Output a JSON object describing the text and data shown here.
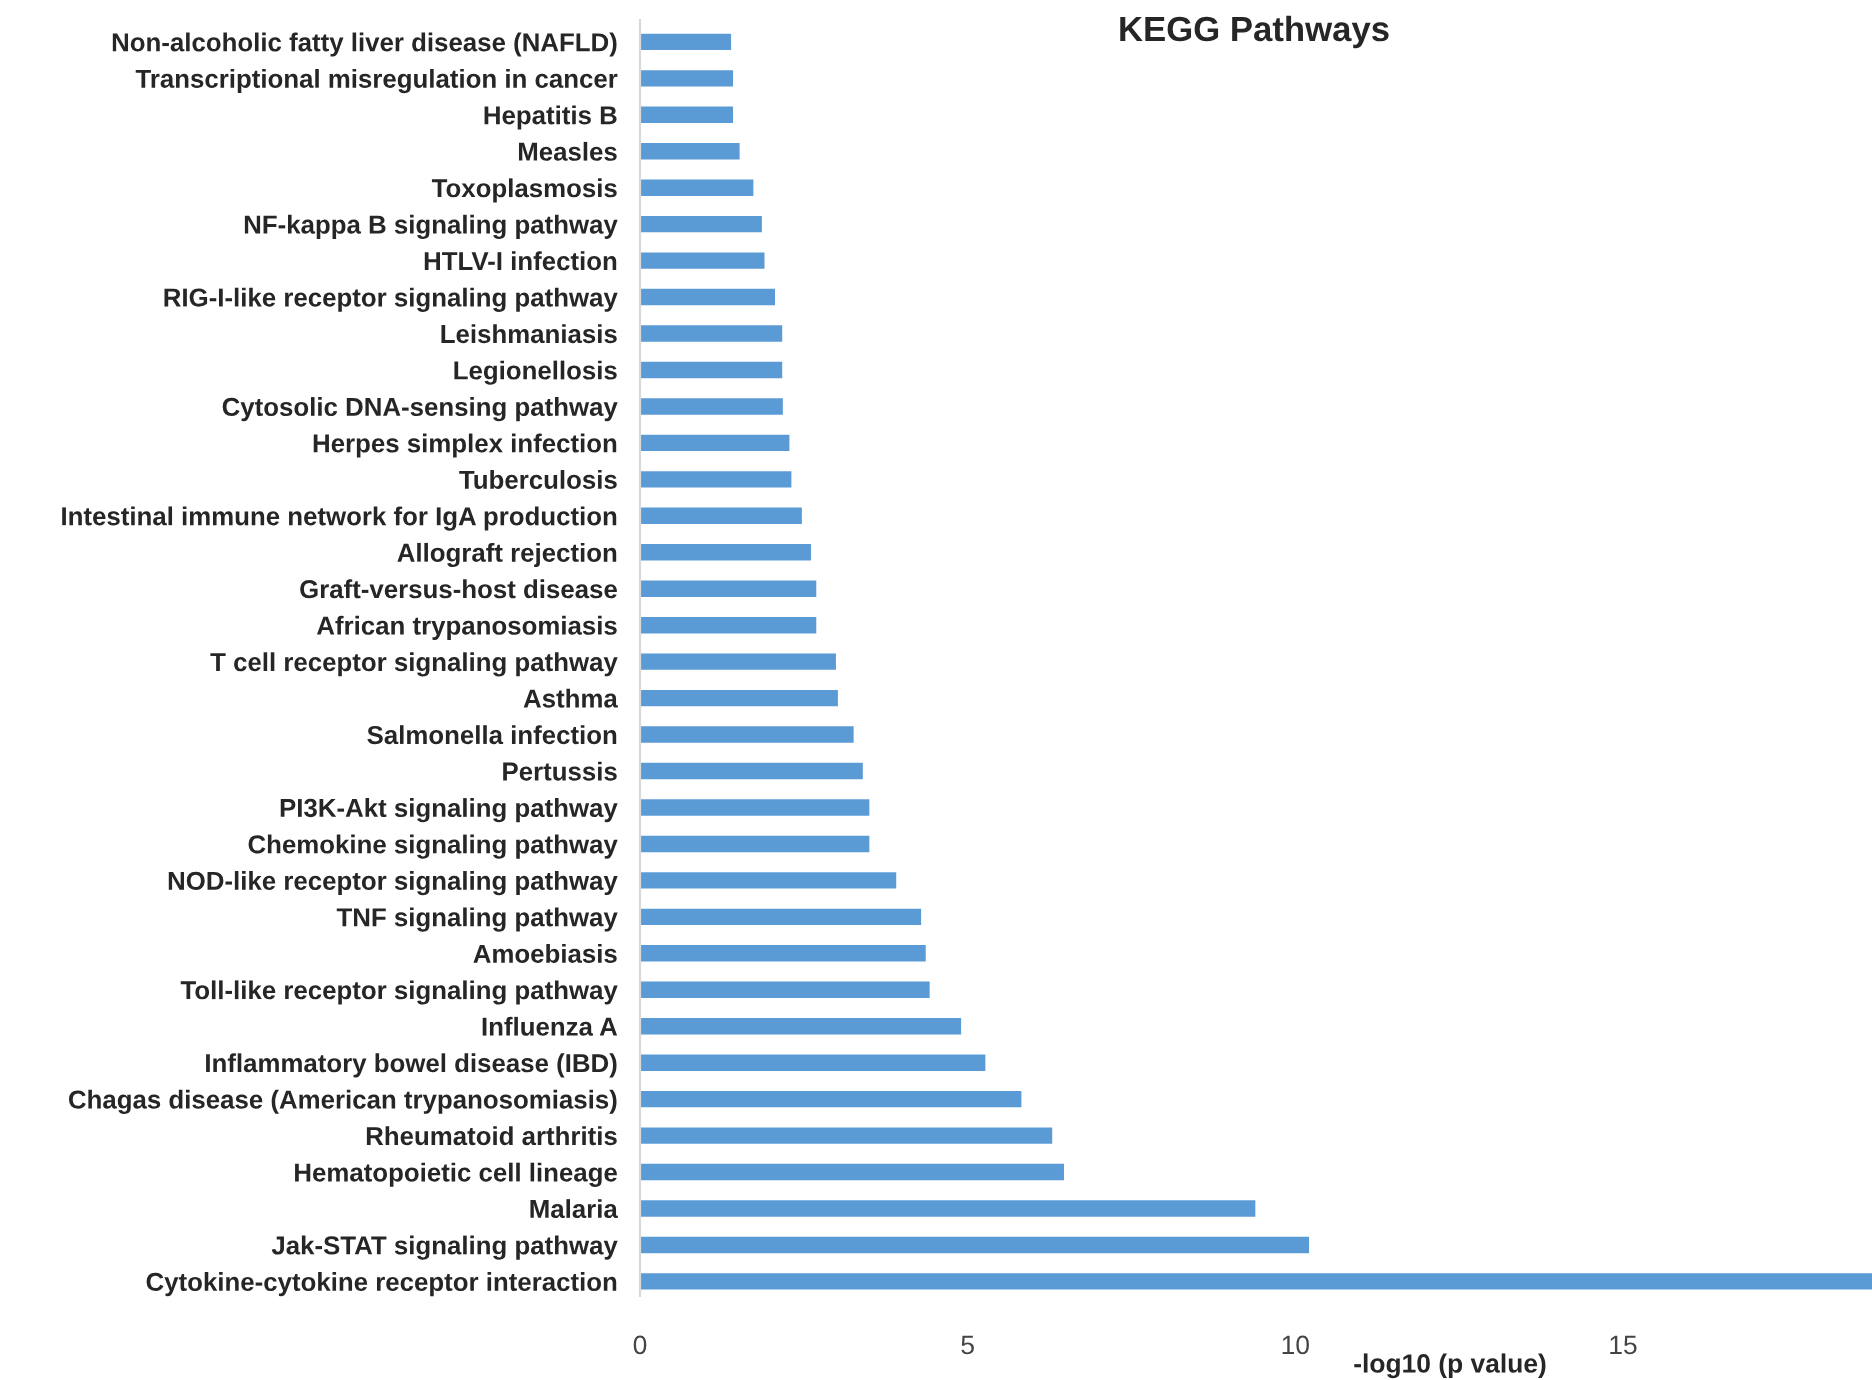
{
  "chart_data": {
    "type": "bar",
    "orientation": "horizontal",
    "title": "KEGG Pathways",
    "xlabel": "-log10 (p value)",
    "categories": [
      "Non-alcoholic fatty liver disease (NAFLD)",
      "Transcriptional misregulation in cancer",
      "Hepatitis B",
      "Measles",
      "Toxoplasmosis",
      "NF-kappa B signaling pathway",
      "HTLV-I infection",
      "RIG-I-like receptor signaling pathway",
      "Leishmaniasis",
      "Legionellosis",
      "Cytosolic DNA-sensing pathway",
      "Herpes simplex infection",
      "Tuberculosis",
      "Intestinal immune network for IgA production",
      "Allograft rejection",
      "Graft-versus-host disease",
      "African trypanosomiasis",
      "T cell receptor signaling pathway",
      "Asthma",
      "Salmonella infection",
      "Pertussis",
      "PI3K-Akt signaling pathway",
      "Chemokine signaling pathway",
      "NOD-like receptor signaling pathway",
      "TNF signaling pathway",
      "Amoebiasis",
      "Toll-like receptor signaling pathway",
      "Influenza A",
      "Inflammatory bowel disease (IBD)",
      "Chagas disease (American trypanosomiasis)",
      "Rheumatoid arthritis",
      "Hematopoietic cell lineage",
      "Malaria",
      "Jak-STAT signaling pathway",
      "Cytokine-cytokine receptor interaction"
    ],
    "values": [
      1.39,
      1.42,
      1.42,
      1.52,
      1.73,
      1.86,
      1.9,
      2.06,
      2.17,
      2.17,
      2.18,
      2.28,
      2.31,
      2.47,
      2.61,
      2.69,
      2.69,
      2.99,
      3.02,
      3.26,
      3.4,
      3.5,
      3.5,
      3.91,
      4.29,
      4.36,
      4.42,
      4.9,
      5.27,
      5.82,
      6.29,
      6.47,
      9.39,
      10.21,
      18.8
    ],
    "color": "#5b9bd5",
    "xlim": [
      0,
      18.8
    ],
    "xticks": [
      0,
      5,
      10,
      15
    ],
    "grid": false,
    "legend": false
  }
}
